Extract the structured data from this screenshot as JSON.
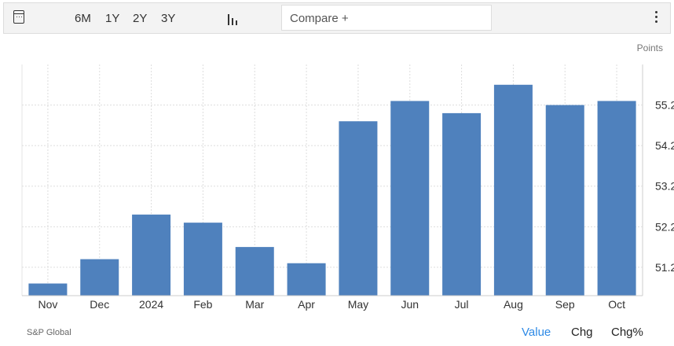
{
  "toolbar": {
    "ranges": [
      "6M",
      "1Y",
      "2Y",
      "3Y"
    ],
    "compare_placeholder": "Compare +",
    "icons": [
      "calendar-icon",
      "bar-chart-icon",
      "more-vertical-icon"
    ]
  },
  "chart_data": {
    "type": "bar",
    "categories": [
      "Nov",
      "Dec",
      "2024",
      "Feb",
      "Mar",
      "Apr",
      "May",
      "Jun",
      "Jul",
      "Aug",
      "Sep",
      "Oct"
    ],
    "values": [
      50.8,
      51.4,
      52.5,
      52.3,
      51.7,
      51.3,
      54.8,
      55.3,
      55.0,
      55.7,
      55.2,
      55.3
    ],
    "yticks": [
      51.2,
      52.2,
      53.2,
      54.2,
      55.2
    ],
    "ylim": [
      50.5,
      56.2
    ],
    "ylabel": "Points",
    "axis_side": "right",
    "grid": true,
    "bar_color": "#4f81bd"
  },
  "footer": {
    "source": "S&P Global",
    "modes": [
      "Value",
      "Chg",
      "Chg%"
    ],
    "active_mode": "Value",
    "active_color": "#2e8ae6"
  }
}
